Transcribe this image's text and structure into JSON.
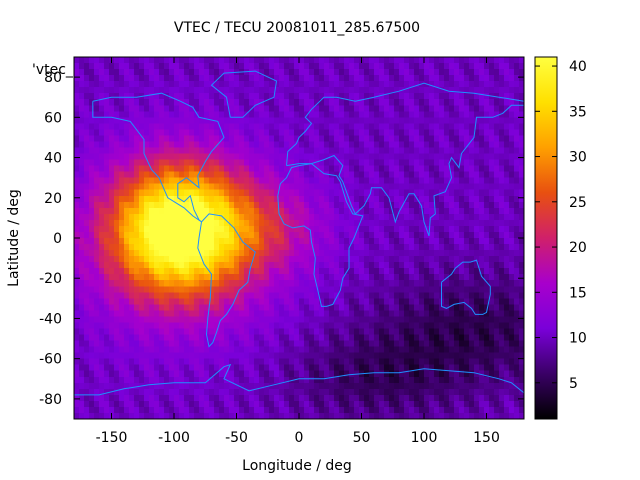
{
  "chart_data": {
    "type": "heatmap",
    "title": "VTEC / TECU 20081011_285.67500",
    "xlabel": "Longitude / deg",
    "ylabel": "Latitude / deg",
    "xlim": [
      -180,
      180
    ],
    "ylim": [
      -90,
      90
    ],
    "x_ticks": [
      "-150",
      "-100",
      "-50",
      "0",
      "50",
      "100",
      "150"
    ],
    "x_tick_values": [
      -150,
      -100,
      -50,
      0,
      50,
      100,
      150
    ],
    "y_ticks": [
      "-80",
      "-60",
      "-40",
      "-20",
      "0",
      "20",
      "40",
      "60",
      "80"
    ],
    "y_tick_values": [
      -80,
      -60,
      -40,
      -20,
      0,
      20,
      40,
      60,
      80
    ],
    "series_label": "'vtec_",
    "colorbar": {
      "range": [
        1,
        41
      ],
      "ticks": [
        "5",
        "10",
        "15",
        "20",
        "25",
        "30",
        "35",
        "40"
      ],
      "tick_values": [
        5,
        10,
        15,
        20,
        25,
        30,
        35,
        40
      ],
      "colormap": [
        "#000000",
        "#3a0066",
        "#7a00d9",
        "#a800cc",
        "#d0206a",
        "#e85010",
        "#ffa000",
        "#ffe000",
        "#ffff40"
      ]
    },
    "peak": {
      "lon": -95,
      "lat": 5,
      "value": 41
    },
    "background_value": 10,
    "coastline_color": "#1e90ff"
  }
}
